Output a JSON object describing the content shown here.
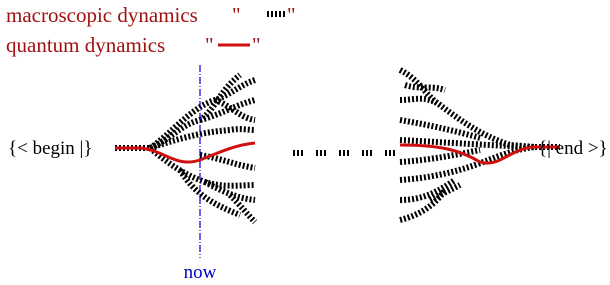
{
  "legend": [
    {
      "label": "macroscopic dynamics",
      "quote": "\""
    },
    {
      "label": "quantum dynamics",
      "quote": "\""
    }
  ],
  "start_label": "{< begin |}",
  "end_label": "{| end >}",
  "now_label": "now"
}
